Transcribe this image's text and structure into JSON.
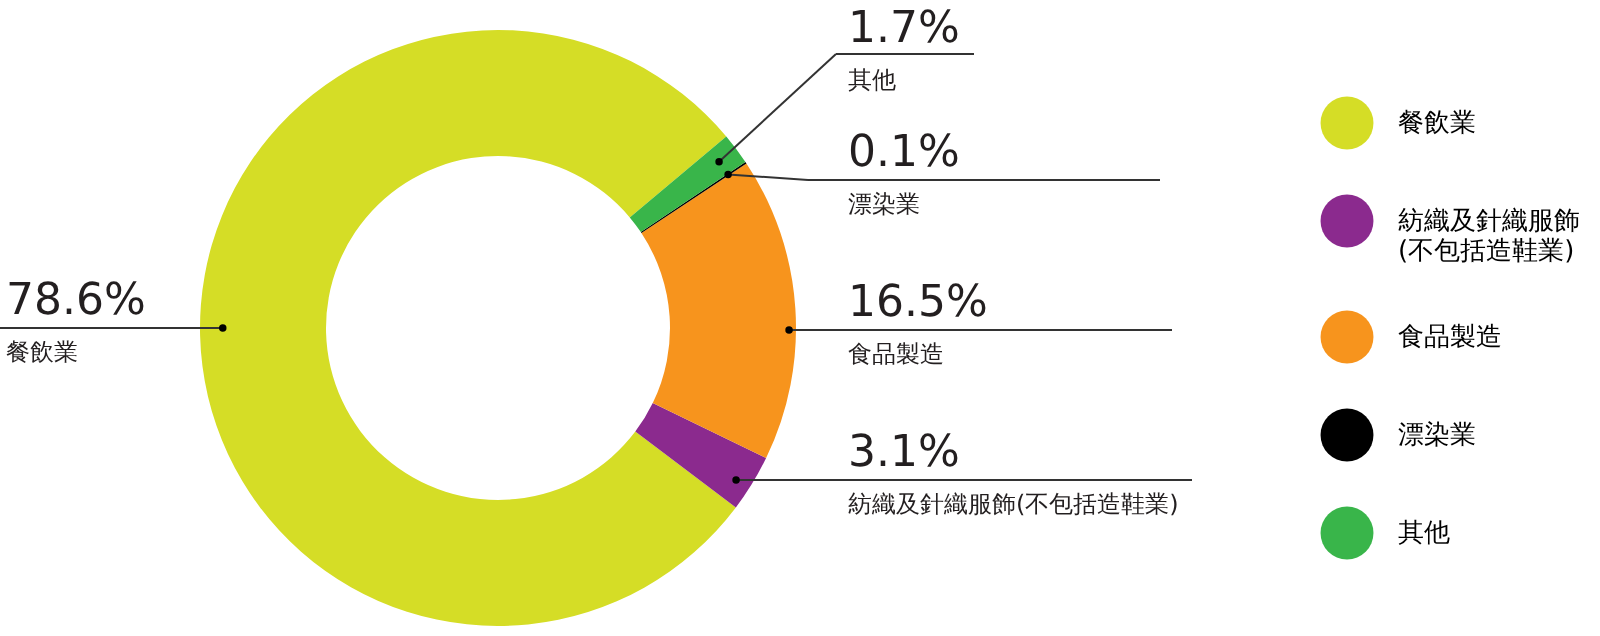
{
  "chart_data": {
    "type": "donut",
    "categories": [
      "餐飲業",
      "紡織及針織服飾(不包括造鞋業)",
      "食品製造",
      "漂染業",
      "其他"
    ],
    "values": [
      78.6,
      3.1,
      16.5,
      0.1,
      1.7
    ],
    "value_labels": [
      "78.6%",
      "3.1%",
      "16.5%",
      "0.1%",
      "1.7%"
    ],
    "colors": [
      "#d5dd26",
      "#8b2a8e",
      "#f7941d",
      "#000000",
      "#39b54a"
    ],
    "legend": "right"
  }
}
